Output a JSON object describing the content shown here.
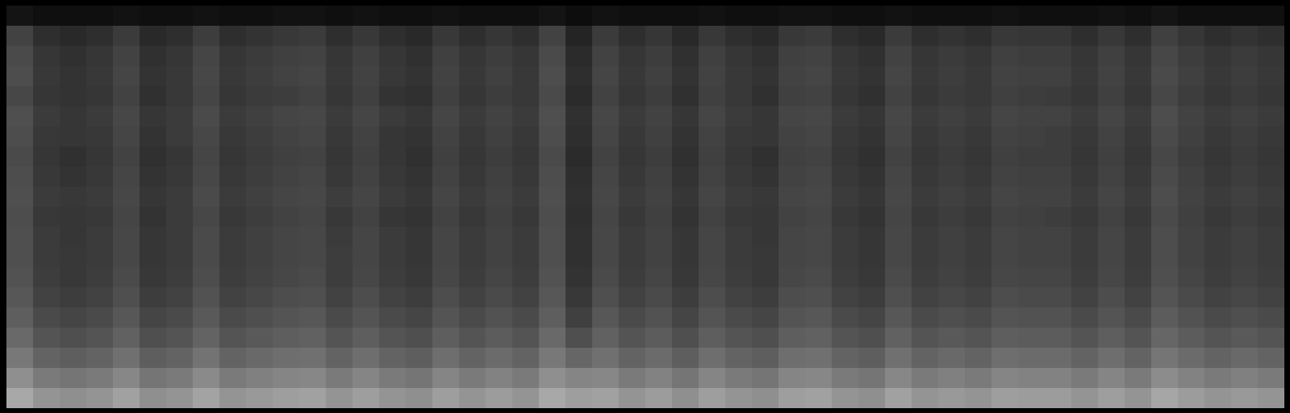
{
  "chart_data": {
    "type": "heatmap",
    "tick_labels": false,
    "zlim": [
      0,
      100
    ],
    "cells": [
      [
        8,
        6,
        6,
        6,
        7,
        6,
        6,
        7,
        6,
        6,
        7,
        7,
        6,
        7,
        6,
        6,
        7,
        6,
        6,
        6,
        8,
        5,
        7,
        6,
        6,
        6,
        7,
        6,
        6,
        7,
        7,
        6,
        6,
        7,
        6,
        6,
        6,
        7,
        6,
        6,
        6,
        7,
        6,
        8,
        6,
        6,
        6,
        6
      ],
      [
        26,
        18,
        16,
        18,
        23,
        16,
        18,
        24,
        18,
        20,
        22,
        23,
        18,
        22,
        18,
        16,
        22,
        18,
        21,
        18,
        26,
        14,
        23,
        18,
        21,
        16,
        22,
        18,
        16,
        22,
        23,
        18,
        16,
        23,
        18,
        20,
        18,
        22,
        21,
        21,
        18,
        22,
        18,
        25,
        21,
        18,
        20,
        18
      ],
      [
        29,
        21,
        19,
        21,
        26,
        19,
        21,
        27,
        21,
        23,
        25,
        26,
        21,
        25,
        21,
        19,
        25,
        21,
        24,
        21,
        29,
        17,
        26,
        21,
        24,
        19,
        25,
        21,
        19,
        25,
        26,
        21,
        19,
        26,
        21,
        23,
        21,
        25,
        24,
        24,
        21,
        25,
        21,
        28,
        24,
        21,
        23,
        21
      ],
      [
        30,
        22,
        20,
        22,
        27,
        20,
        22,
        28,
        22,
        24,
        26,
        27,
        22,
        26,
        22,
        20,
        26,
        22,
        25,
        22,
        30,
        18,
        27,
        22,
        25,
        20,
        26,
        22,
        20,
        26,
        27,
        22,
        20,
        27,
        22,
        24,
        22,
        26,
        25,
        25,
        22,
        26,
        22,
        29,
        25,
        22,
        24,
        22
      ],
      [
        28,
        21,
        20,
        21,
        26,
        19,
        22,
        27,
        21,
        23,
        24,
        26,
        21,
        25,
        20,
        19,
        25,
        21,
        24,
        22,
        29,
        17,
        26,
        21,
        24,
        19,
        25,
        22,
        19,
        25,
        26,
        21,
        19,
        26,
        21,
        23,
        22,
        25,
        24,
        23,
        21,
        25,
        21,
        28,
        24,
        21,
        23,
        21
      ],
      [
        31,
        23,
        21,
        23,
        28,
        21,
        23,
        29,
        23,
        25,
        27,
        28,
        23,
        27,
        23,
        21,
        27,
        23,
        26,
        23,
        31,
        19,
        28,
        23,
        26,
        21,
        27,
        23,
        21,
        27,
        28,
        23,
        21,
        28,
        23,
        25,
        23,
        27,
        26,
        26,
        23,
        27,
        23,
        30,
        26,
        23,
        25,
        23
      ],
      [
        30,
        22,
        21,
        22,
        27,
        20,
        23,
        28,
        22,
        24,
        26,
        27,
        22,
        26,
        21,
        20,
        26,
        22,
        25,
        22,
        30,
        18,
        27,
        22,
        25,
        20,
        26,
        22,
        21,
        26,
        27,
        22,
        20,
        27,
        22,
        24,
        22,
        26,
        25,
        24,
        22,
        26,
        22,
        29,
        25,
        22,
        24,
        22
      ],
      [
        29,
        21,
        19,
        21,
        26,
        19,
        21,
        27,
        21,
        23,
        25,
        26,
        21,
        25,
        21,
        19,
        25,
        21,
        24,
        21,
        29,
        17,
        26,
        21,
        24,
        19,
        25,
        21,
        19,
        25,
        26,
        21,
        19,
        26,
        21,
        23,
        21,
        25,
        24,
        24,
        21,
        25,
        21,
        28,
        24,
        21,
        23,
        21
      ],
      [
        30,
        22,
        20,
        22,
        27,
        20,
        22,
        28,
        22,
        24,
        26,
        27,
        22,
        26,
        22,
        20,
        26,
        22,
        25,
        22,
        30,
        18,
        27,
        22,
        25,
        20,
        26,
        22,
        20,
        26,
        27,
        22,
        20,
        27,
        22,
        24,
        22,
        26,
        25,
        25,
        22,
        26,
        22,
        29,
        25,
        22,
        24,
        22
      ],
      [
        31,
        23,
        22,
        23,
        28,
        21,
        23,
        29,
        23,
        25,
        27,
        28,
        24,
        27,
        23,
        21,
        27,
        23,
        26,
        23,
        31,
        19,
        28,
        23,
        26,
        21,
        27,
        23,
        22,
        27,
        28,
        23,
        21,
        28,
        23,
        25,
        23,
        27,
        26,
        26,
        23,
        27,
        23,
        30,
        26,
        23,
        25,
        23
      ],
      [
        30,
        22,
        21,
        22,
        27,
        20,
        23,
        28,
        22,
        24,
        26,
        27,
        22,
        26,
        21,
        20,
        26,
        22,
        25,
        22,
        30,
        18,
        27,
        22,
        25,
        20,
        26,
        22,
        21,
        26,
        27,
        22,
        20,
        27,
        22,
        24,
        22,
        26,
        25,
        24,
        22,
        26,
        22,
        29,
        25,
        22,
        24,
        22
      ],
      [
        31,
        23,
        21,
        23,
        28,
        21,
        23,
        29,
        23,
        25,
        27,
        28,
        23,
        27,
        23,
        21,
        27,
        23,
        26,
        23,
        31,
        19,
        28,
        23,
        26,
        21,
        27,
        23,
        21,
        27,
        28,
        23,
        21,
        28,
        23,
        25,
        23,
        27,
        26,
        26,
        23,
        27,
        23,
        30,
        26,
        23,
        25,
        23
      ],
      [
        31,
        23,
        22,
        23,
        28,
        21,
        23,
        29,
        23,
        25,
        27,
        28,
        24,
        27,
        23,
        21,
        27,
        23,
        26,
        23,
        31,
        19,
        28,
        23,
        26,
        21,
        27,
        23,
        22,
        27,
        28,
        23,
        21,
        28,
        23,
        25,
        23,
        27,
        26,
        26,
        23,
        27,
        23,
        30,
        26,
        23,
        25,
        23
      ],
      [
        32,
        24,
        22,
        24,
        29,
        22,
        24,
        30,
        24,
        26,
        28,
        29,
        24,
        28,
        24,
        22,
        28,
        24,
        27,
        24,
        32,
        20,
        29,
        24,
        27,
        22,
        28,
        24,
        22,
        28,
        29,
        24,
        22,
        29,
        24,
        26,
        24,
        28,
        27,
        27,
        24,
        28,
        24,
        31,
        27,
        24,
        26,
        24
      ],
      [
        34,
        26,
        24,
        26,
        31,
        24,
        26,
        32,
        26,
        28,
        30,
        31,
        26,
        30,
        26,
        24,
        30,
        26,
        29,
        26,
        34,
        22,
        31,
        26,
        29,
        24,
        30,
        26,
        24,
        30,
        31,
        26,
        24,
        31,
        26,
        28,
        26,
        30,
        29,
        29,
        26,
        30,
        26,
        33,
        29,
        26,
        28,
        26
      ],
      [
        37,
        29,
        27,
        29,
        34,
        27,
        29,
        35,
        29,
        31,
        33,
        34,
        29,
        33,
        29,
        27,
        33,
        29,
        32,
        29,
        37,
        25,
        34,
        29,
        32,
        27,
        33,
        29,
        27,
        33,
        34,
        29,
        27,
        34,
        29,
        31,
        29,
        33,
        32,
        32,
        29,
        33,
        29,
        36,
        32,
        29,
        31,
        29
      ],
      [
        41,
        33,
        31,
        33,
        38,
        31,
        33,
        39,
        33,
        35,
        37,
        38,
        33,
        37,
        33,
        31,
        37,
        33,
        36,
        33,
        41,
        31,
        38,
        33,
        36,
        31,
        37,
        33,
        31,
        37,
        38,
        33,
        31,
        38,
        33,
        35,
        33,
        37,
        36,
        36,
        33,
        37,
        33,
        40,
        36,
        33,
        35,
        33
      ],
      [
        47,
        39,
        37,
        39,
        44,
        37,
        39,
        45,
        39,
        41,
        43,
        44,
        39,
        43,
        39,
        37,
        43,
        39,
        42,
        39,
        47,
        40,
        44,
        39,
        42,
        37,
        43,
        39,
        37,
        43,
        44,
        39,
        37,
        44,
        39,
        41,
        39,
        43,
        42,
        42,
        39,
        43,
        39,
        46,
        42,
        39,
        41,
        39
      ],
      [
        56,
        48,
        46,
        48,
        53,
        46,
        48,
        54,
        48,
        50,
        52,
        53,
        48,
        52,
        48,
        46,
        52,
        48,
        51,
        48,
        56,
        52,
        53,
        48,
        51,
        46,
        52,
        48,
        46,
        52,
        53,
        48,
        46,
        53,
        48,
        50,
        48,
        52,
        51,
        51,
        48,
        52,
        48,
        55,
        51,
        48,
        50,
        48
      ],
      [
        66,
        58,
        56,
        58,
        63,
        56,
        58,
        64,
        58,
        60,
        62,
        63,
        58,
        62,
        58,
        56,
        62,
        58,
        61,
        58,
        66,
        62,
        63,
        58,
        61,
        56,
        62,
        58,
        56,
        62,
        63,
        58,
        56,
        63,
        58,
        60,
        58,
        62,
        61,
        61,
        58,
        62,
        58,
        65,
        61,
        58,
        60,
        58
      ]
    ]
  }
}
